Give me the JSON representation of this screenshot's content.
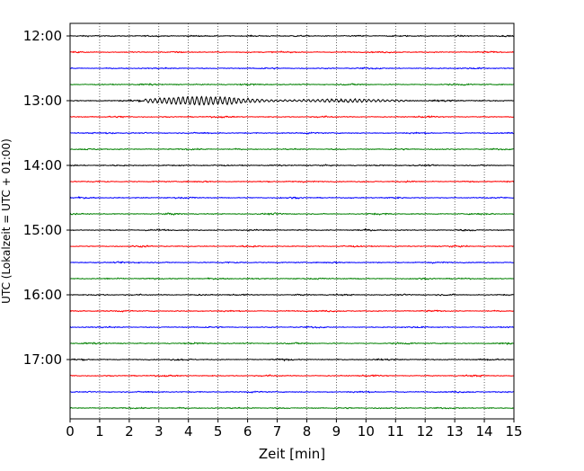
{
  "chart_data": {
    "type": "line",
    "subtype": "helicorder-seismogram",
    "title": "",
    "xlabel": "Zeit  [min]",
    "ylabel": "UTC (Lokalzeit = UTC + 01:00)",
    "xlim": [
      0,
      15
    ],
    "x_ticks": [
      "0",
      "1",
      "2",
      "3",
      "4",
      "5",
      "6",
      "7",
      "8",
      "9",
      "10",
      "11",
      "12",
      "13",
      "14",
      "15"
    ],
    "y_ticks": [
      "12:00",
      "13:00",
      "14:00",
      "15:00",
      "16:00",
      "17:00"
    ],
    "minutes_per_trace": 15,
    "grid": "vertical dotted lines at each minute",
    "trace_colors": [
      "#000000",
      "#ff0000",
      "#0000ff",
      "#008000"
    ],
    "traces": [
      {
        "start": "12:00",
        "color": "#000000",
        "amplitude": 0.35,
        "event": null
      },
      {
        "start": "12:15",
        "color": "#ff0000",
        "amplitude": 0.35,
        "event": null
      },
      {
        "start": "12:30",
        "color": "#0000ff",
        "amplitude": 0.35,
        "event": null
      },
      {
        "start": "12:45",
        "color": "#008000",
        "amplitude": 0.35,
        "event": null
      },
      {
        "start": "13:00",
        "color": "#000000",
        "amplitude": 0.4,
        "event": {
          "start_min": 2.5,
          "end_min": 11.5,
          "peak_min": 5.5,
          "amplitude": 1.0
        }
      },
      {
        "start": "13:15",
        "color": "#ff0000",
        "amplitude": 0.35,
        "event": null
      },
      {
        "start": "13:30",
        "color": "#0000ff",
        "amplitude": 0.35,
        "event": null
      },
      {
        "start": "13:45",
        "color": "#008000",
        "amplitude": 0.35,
        "event": null
      },
      {
        "start": "14:00",
        "color": "#000000",
        "amplitude": 0.35,
        "event": null
      },
      {
        "start": "14:15",
        "color": "#ff0000",
        "amplitude": 0.35,
        "event": null
      },
      {
        "start": "14:30",
        "color": "#0000ff",
        "amplitude": 0.35,
        "event": null
      },
      {
        "start": "14:45",
        "color": "#008000",
        "amplitude": 0.35,
        "event": null
      },
      {
        "start": "15:00",
        "color": "#000000",
        "amplitude": 0.35,
        "event": null
      },
      {
        "start": "15:15",
        "color": "#ff0000",
        "amplitude": 0.35,
        "event": null
      },
      {
        "start": "15:30",
        "color": "#0000ff",
        "amplitude": 0.35,
        "event": null
      },
      {
        "start": "15:45",
        "color": "#008000",
        "amplitude": 0.35,
        "event": null
      },
      {
        "start": "16:00",
        "color": "#000000",
        "amplitude": 0.35,
        "event": null
      },
      {
        "start": "16:15",
        "color": "#ff0000",
        "amplitude": 0.35,
        "event": null
      },
      {
        "start": "16:30",
        "color": "#0000ff",
        "amplitude": 0.35,
        "event": null
      },
      {
        "start": "16:45",
        "color": "#008000",
        "amplitude": 0.35,
        "event": null
      },
      {
        "start": "17:00",
        "color": "#000000",
        "amplitude": 0.35,
        "event": null
      },
      {
        "start": "17:15",
        "color": "#ff0000",
        "amplitude": 0.35,
        "event": null
      },
      {
        "start": "17:30",
        "color": "#0000ff",
        "amplitude": 0.35,
        "event": null
      },
      {
        "start": "17:45",
        "color": "#008000",
        "amplitude": 0.35,
        "event": null
      }
    ]
  }
}
